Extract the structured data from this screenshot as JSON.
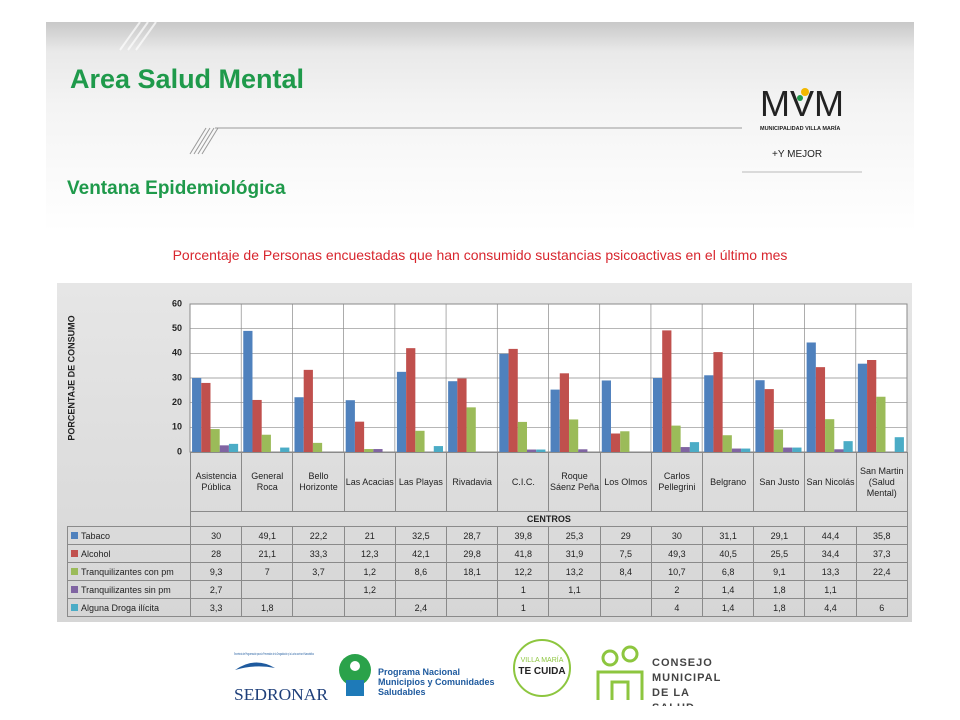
{
  "header": {
    "title": "Area Salud Mental",
    "subtitle": "Ventana Epidemiológica"
  },
  "logo": {
    "mark": "MVM",
    "name": "MUNICIPALIDAD VILLA MARÍA",
    "slogan": "+Y MEJOR"
  },
  "chart_data": {
    "type": "bar",
    "title": "Porcentaje de Personas  encuestadas que han consumido sustancias psicoactivas en el último mes",
    "y_label": "PORCENTAJE DE CONSUMO",
    "x_label": "CENTROS",
    "categories": [
      "Asistencia Pública",
      "General Roca",
      "Bello Horizonte",
      "Las Acacias",
      "Las Playas",
      "Rivadavia",
      "C.I.C.",
      "Roque Sáenz Peña",
      "Los Olmos",
      "Carlos Pellegrini",
      "Belgrano",
      "San Justo",
      "San Nicolás",
      "San Martin (Salud Mental)"
    ],
    "series": [
      {
        "name": "Tabaco",
        "color": "#4f81bd",
        "values": [
          30,
          49.1,
          22.2,
          21,
          32.5,
          28.7,
          39.8,
          25.3,
          29,
          30,
          31.1,
          29.1,
          44.4,
          35.8
        ],
        "value_labels": [
          "30",
          "49,1",
          "22,2",
          "21",
          "32,5",
          "28,7",
          "39,8",
          "25,3",
          "29",
          "30",
          "31,1",
          "29,1",
          "44,4",
          "35,8"
        ]
      },
      {
        "name": "Alcohol",
        "color": "#c0504d",
        "values": [
          28,
          21.1,
          33.3,
          12.3,
          42.1,
          29.8,
          41.8,
          31.9,
          7.5,
          49.3,
          40.5,
          25.5,
          34.4,
          37.3
        ],
        "value_labels": [
          "28",
          "21,1",
          "33,3",
          "12,3",
          "42,1",
          "29,8",
          "41,8",
          "31,9",
          "7,5",
          "49,3",
          "40,5",
          "25,5",
          "34,4",
          "37,3"
        ]
      },
      {
        "name": "Tranquilizantes con pm",
        "color": "#9bbb59",
        "values": [
          9.3,
          7,
          3.7,
          1.2,
          8.6,
          18.1,
          12.2,
          13.2,
          8.4,
          10.7,
          6.8,
          9.1,
          13.3,
          22.4
        ],
        "value_labels": [
          "9,3",
          "7",
          "3,7",
          "1,2",
          "8,6",
          "18,1",
          "12,2",
          "13,2",
          "8,4",
          "10,7",
          "6,8",
          "9,1",
          "13,3",
          "22,4"
        ]
      },
      {
        "name": "Tranquilizantes sin pm",
        "color": "#8064a2",
        "values": [
          2.7,
          null,
          null,
          1.2,
          null,
          null,
          1,
          1.1,
          null,
          2,
          1.4,
          1.8,
          1.1,
          null
        ],
        "value_labels": [
          "2,7",
          null,
          null,
          "1,2",
          null,
          null,
          "1",
          "1,1",
          null,
          "2",
          "1,4",
          "1,8",
          "1,1",
          null
        ]
      },
      {
        "name": "Alguna Droga ilícita",
        "color": "#4bacc6",
        "values": [
          3.3,
          1.8,
          null,
          null,
          2.4,
          null,
          1,
          null,
          null,
          4,
          1.4,
          1.8,
          4.4,
          6
        ],
        "value_labels": [
          "3,3",
          "1,8",
          null,
          null,
          "2,4",
          null,
          "1",
          null,
          null,
          "4",
          "1,4",
          "1,8",
          "4,4",
          "6"
        ]
      }
    ],
    "ylim": [
      0,
      60
    ],
    "yticks": [
      0,
      10,
      20,
      30,
      40,
      50,
      60
    ],
    "grid": true
  },
  "footer": {
    "sedronar_small": "Secretaría de Programación para la Prevención de la Drogadicción y la Lucha contra el Narcotráfico",
    "sedronar": "SEDRONAR",
    "programa": "Programa Nacional Municipios y Comunidades Saludables",
    "cuida_top": "VILLA MARÍA",
    "cuida": "TE CUIDA",
    "consejo": "CONSEJO MUNICIPAL DE LA SALUD"
  }
}
